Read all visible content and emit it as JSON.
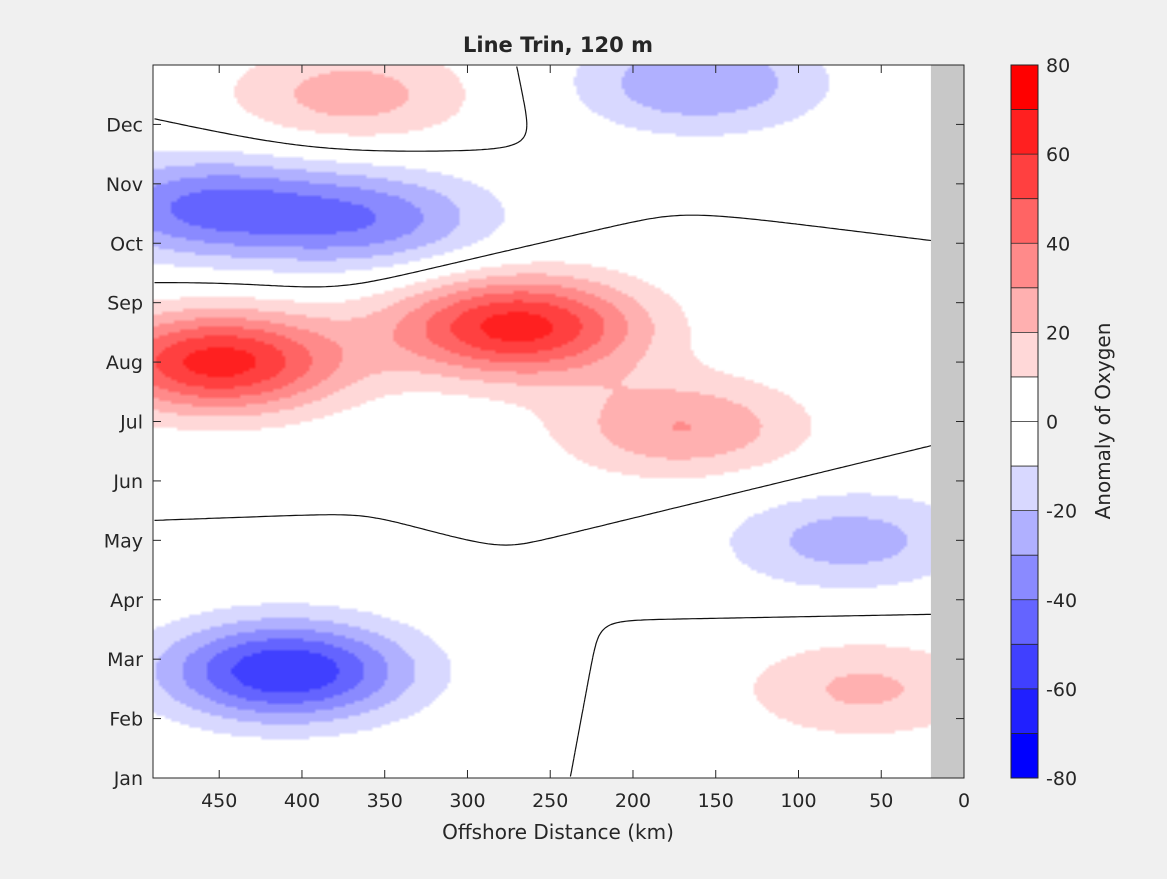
{
  "chart_data": {
    "type": "heatmap",
    "subtype": "filled-contour",
    "title": "Line Trin, 120 m",
    "xlabel": "Offshore Distance (km)",
    "ylabel": "",
    "xlim": [
      490,
      0
    ],
    "x_reversed": true,
    "xticks": [
      "450",
      "400",
      "350",
      "300",
      "250",
      "200",
      "150",
      "100",
      "50",
      "0"
    ],
    "xtick_values": [
      450,
      400,
      350,
      300,
      250,
      200,
      150,
      100,
      50,
      0
    ],
    "yticks": [
      "Jan",
      "Feb",
      "Mar",
      "Apr",
      "May",
      "Jun",
      "Jul",
      "Aug",
      "Sep",
      "Oct",
      "Nov",
      "Dec"
    ],
    "ylim": [
      1,
      13
    ],
    "land_mask_from_km": 20,
    "colorbar": {
      "label": "Anomaly of Oxygen",
      "range": [
        -80,
        80
      ],
      "ticks": [
        "80",
        "60",
        "40",
        "20",
        "0",
        "-20",
        "-40",
        "-60",
        "-80"
      ],
      "tick_values": [
        80,
        60,
        40,
        20,
        0,
        -20,
        -40,
        -60,
        -80
      ],
      "levels": [
        -80,
        -70,
        -60,
        -50,
        -40,
        -30,
        -20,
        -10,
        10,
        20,
        30,
        40,
        50,
        60,
        70,
        80
      ],
      "colors": [
        "#0000ff",
        "#2020ff",
        "#4040ff",
        "#6464ff",
        "#8a8aff",
        "#b0b0ff",
        "#d8d8ff",
        "#ffffff",
        "#ffd8d8",
        "#ffb0b0",
        "#ff8a8a",
        "#ff6464",
        "#ff4040",
        "#ff2020",
        "#ff0000"
      ]
    },
    "features": [
      {
        "name": "positive core",
        "x_km": 450,
        "month": 8.0,
        "anomaly": 65
      },
      {
        "name": "positive core",
        "x_km": 270,
        "month": 8.6,
        "anomaly": 65
      },
      {
        "name": "positive core",
        "x_km": 170,
        "month": 6.9,
        "anomaly": 30
      },
      {
        "name": "positive core",
        "x_km": 370,
        "month": 12.5,
        "anomaly": 25
      },
      {
        "name": "positive core",
        "x_km": 60,
        "month": 2.5,
        "anomaly": 22
      },
      {
        "name": "negative core",
        "x_km": 410,
        "month": 2.8,
        "anomaly": -60
      },
      {
        "name": "negative core",
        "x_km": 460,
        "month": 10.6,
        "anomaly": -40
      },
      {
        "name": "negative core",
        "x_km": 360,
        "month": 10.4,
        "anomaly": -35
      },
      {
        "name": "negative core",
        "x_km": 160,
        "month": 12.7,
        "anomaly": -30
      },
      {
        "name": "negative core",
        "x_km": 70,
        "month": 5.0,
        "anomaly": -25
      }
    ]
  }
}
